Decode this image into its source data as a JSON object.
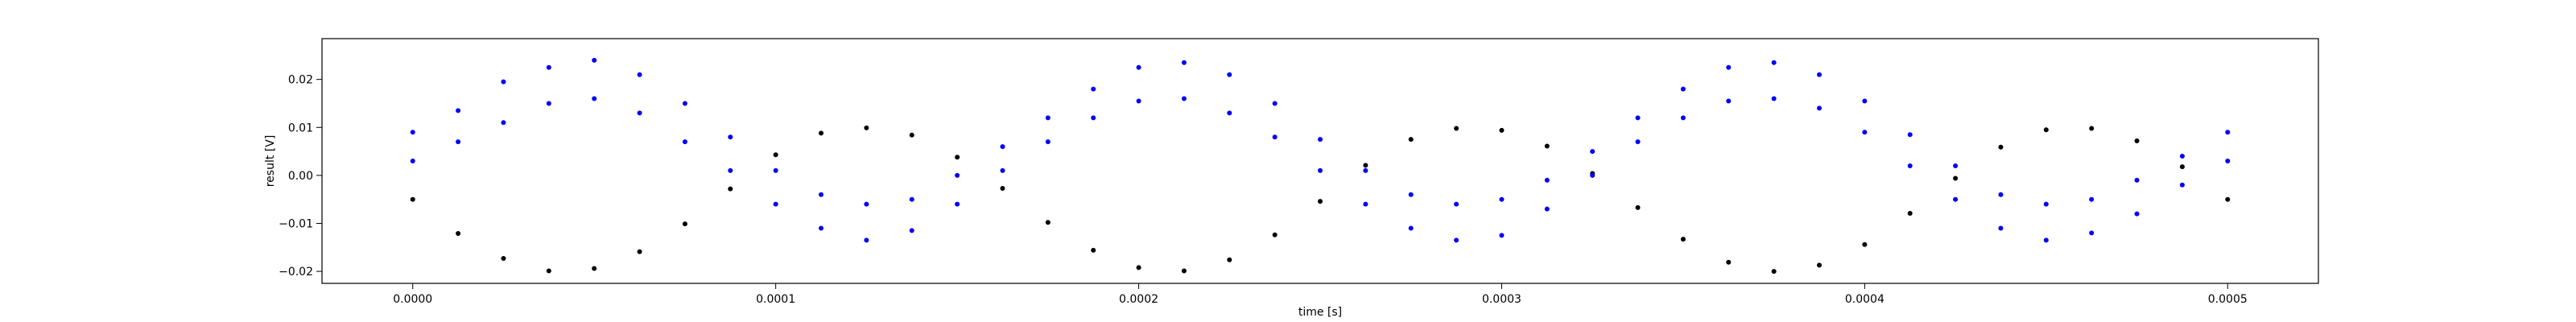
{
  "chart_data": {
    "type": "scatter",
    "xlabel": "time [s]",
    "ylabel": "result [V]",
    "xlim": [
      -2.5e-05,
      0.000525
    ],
    "ylim": [
      -0.0225,
      0.0285
    ],
    "grid": false,
    "x_ticks": [
      {
        "value": 0.0,
        "label": "0.0000"
      },
      {
        "value": 0.0001,
        "label": "0.0001"
      },
      {
        "value": 0.0002,
        "label": "0.0002"
      },
      {
        "value": 0.0003,
        "label": "0.0003"
      },
      {
        "value": 0.0004,
        "label": "0.0004"
      },
      {
        "value": 0.0005,
        "label": "0.0005"
      }
    ],
    "y_ticks": [
      {
        "value": -0.02,
        "label": "−0.02"
      },
      {
        "value": -0.01,
        "label": "−0.01"
      },
      {
        "value": 0.0,
        "label": "0.00"
      },
      {
        "value": 0.01,
        "label": "0.01"
      },
      {
        "value": 0.02,
        "label": "0.02"
      }
    ],
    "series": [
      {
        "color": "#000000",
        "marker": "dot",
        "x": [
          0.0,
          1.25e-05,
          2.5e-05,
          3.75e-05,
          5e-05,
          6.25e-05,
          7.5e-05,
          8.75e-05,
          0.0001,
          0.0001125,
          0.000125,
          0.0001375,
          0.00015,
          0.0001625,
          0.000175,
          0.0001875,
          0.0002,
          0.0002125,
          0.000225,
          0.0002375,
          0.00025,
          0.0002625,
          0.000275,
          0.0002875,
          0.0003,
          0.0003125,
          0.000325,
          0.0003375,
          0.00035,
          0.0003625,
          0.000375,
          0.0003875,
          0.0004,
          0.0004125,
          0.000425,
          0.0004375,
          0.00045,
          0.0004625,
          0.000475,
          0.0004875,
          0.0005
        ],
        "y": [
          -0.005,
          -0.0121,
          -0.0173,
          -0.0199,
          -0.0194,
          -0.0159,
          -0.0101,
          -0.0028,
          0.0043,
          0.0088,
          0.0099,
          0.0084,
          0.0038,
          -0.0027,
          -0.0098,
          -0.0156,
          -0.0192,
          -0.0199,
          -0.0176,
          -0.0124,
          -0.0054,
          0.0021,
          0.0075,
          0.0098,
          0.0094,
          0.0061,
          0.0004,
          -0.0067,
          -0.0133,
          -0.0181,
          -0.02,
          -0.0187,
          -0.0144,
          -0.0079,
          -0.0006,
          0.0059,
          0.0095,
          0.0098,
          0.0072,
          0.0018,
          -0.005
        ]
      },
      {
        "color": "#0000ff",
        "marker": "dot",
        "x": [
          0.0,
          1.25e-05,
          2.5e-05,
          3.75e-05,
          5e-05,
          6.25e-05,
          7.5e-05,
          8.75e-05,
          0.0001,
          0.0001125,
          0.000125,
          0.0001375,
          0.00015,
          0.0001625,
          0.000175,
          0.0001875,
          0.0002,
          0.0002125,
          0.000225,
          0.0002375,
          0.00025,
          0.0002625,
          0.000275,
          0.0002875,
          0.0003,
          0.0003125,
          0.000325,
          0.0003375,
          0.00035,
          0.0003625,
          0.000375,
          0.0003875,
          0.0004,
          0.0004125,
          0.000425,
          0.0004375,
          0.00045,
          0.0004625,
          0.000475,
          0.0004875,
          0.0005
        ],
        "y": [
          0.009,
          0.0135,
          0.0195,
          0.0225,
          0.024,
          0.021,
          0.015,
          0.008,
          0.001,
          -0.004,
          -0.006,
          -0.005,
          0.0,
          0.006,
          0.012,
          0.018,
          0.0225,
          0.0235,
          0.021,
          0.015,
          0.0075,
          0.001,
          -0.004,
          -0.006,
          -0.005,
          -0.001,
          0.005,
          0.012,
          0.018,
          0.0225,
          0.0235,
          0.021,
          0.0155,
          0.0085,
          0.002,
          -0.004,
          -0.006,
          -0.005,
          -0.001,
          0.004,
          0.009
        ]
      },
      {
        "color": "#0000ff",
        "marker": "dot",
        "x": [
          0.0,
          1.25e-05,
          2.5e-05,
          3.75e-05,
          5e-05,
          6.25e-05,
          7.5e-05,
          8.75e-05,
          0.0001,
          0.0001125,
          0.000125,
          0.0001375,
          0.00015,
          0.0001625,
          0.000175,
          0.0001875,
          0.0002,
          0.0002125,
          0.000225,
          0.0002375,
          0.00025,
          0.0002625,
          0.000275,
          0.0002875,
          0.0003,
          0.0003125,
          0.000325,
          0.0003375,
          0.00035,
          0.0003625,
          0.000375,
          0.0003875,
          0.0004,
          0.0004125,
          0.000425,
          0.0004375,
          0.00045,
          0.0004625,
          0.000475,
          0.0004875,
          0.0005
        ],
        "y": [
          0.003,
          0.007,
          0.011,
          0.015,
          0.016,
          0.013,
          0.007,
          0.001,
          -0.006,
          -0.011,
          -0.0135,
          -0.0115,
          -0.006,
          0.001,
          0.007,
          0.012,
          0.0155,
          0.016,
          0.013,
          0.008,
          0.001,
          -0.006,
          -0.011,
          -0.0135,
          -0.0125,
          -0.007,
          0.0,
          0.007,
          0.012,
          0.0155,
          0.016,
          0.014,
          0.009,
          0.002,
          -0.005,
          -0.011,
          -0.0135,
          -0.012,
          -0.008,
          -0.002,
          0.003
        ]
      }
    ]
  }
}
